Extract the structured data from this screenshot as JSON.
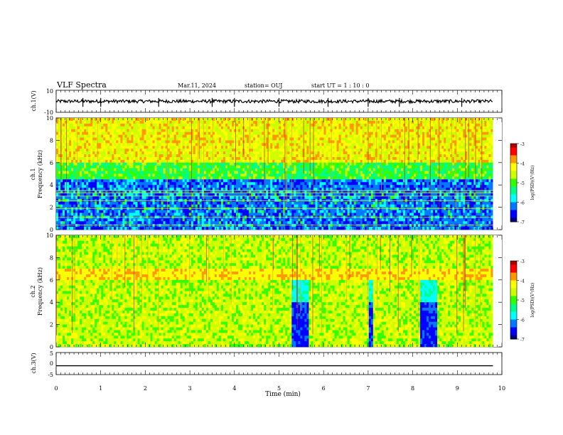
{
  "header": {
    "title": "VLF Spectra",
    "date": "Mar.11, 2024",
    "station": "station= OUJ",
    "start": "start  UT =   1 : 10 : 0"
  },
  "colors": {
    "spectrum_scale": [
      "#00007a",
      "#0000ff",
      "#0078ff",
      "#00ffff",
      "#00ff88",
      "#33ff00",
      "#ccff00",
      "#ffff00",
      "#ff9900",
      "#ff0000",
      "#aa0000"
    ]
  },
  "chart_data": [
    {
      "type": "line",
      "panel": "ch1-waveform",
      "ylabel": "ch.1(V)",
      "ylim": [
        -10,
        10
      ],
      "y_ticks": [
        "10",
        "-10"
      ],
      "baseline": 0,
      "x_range": [
        0,
        9.8
      ]
    },
    {
      "type": "heatmap",
      "panel": "ch1-spectrogram",
      "ylabel_line1": "ch.1",
      "ylabel_line2": "Frequency (kHz)",
      "ylim": [
        0,
        10
      ],
      "y_ticks": [
        "0",
        "2",
        "4",
        "6",
        "8",
        "10"
      ],
      "x_range": [
        0,
        9.8
      ],
      "colorbar": {
        "label": "log(PSD)(V²/Hz)",
        "range": [
          -7,
          -3
        ],
        "ticks": [
          "-3",
          "-4",
          "-5",
          "-6",
          "-7"
        ]
      }
    },
    {
      "type": "heatmap",
      "panel": "ch2-spectrogram",
      "ylabel_line1": "ch.2",
      "ylabel_line2": "Frequency (kHz)",
      "ylim": [
        0,
        10
      ],
      "y_ticks": [
        "0",
        "2",
        "4",
        "6",
        "8",
        "10"
      ],
      "x_range": [
        0,
        9.8
      ],
      "blue_intervals_min": [
        [
          5.3,
          5.65
        ],
        [
          7.0,
          7.1
        ],
        [
          8.15,
          8.55
        ]
      ],
      "colorbar": {
        "label": "log(PSD)(V²/Hz)",
        "range": [
          -7,
          -3
        ],
        "ticks": [
          "-3",
          "-4",
          "-5",
          "-6",
          "-7"
        ]
      }
    },
    {
      "type": "line",
      "panel": "ch3-waveform",
      "ylabel": "ch.3(V)",
      "ylim": [
        -5,
        5
      ],
      "y_ticks": [
        "5",
        "0",
        "-5"
      ],
      "baseline": -1,
      "x_range": [
        0,
        9.8
      ]
    }
  ],
  "x_axis": {
    "xlabel": "Time  (min)",
    "xlim": [
      0,
      10
    ],
    "ticks": [
      "0",
      "1",
      "2",
      "3",
      "4",
      "5",
      "6",
      "7",
      "8",
      "9",
      "10"
    ]
  }
}
